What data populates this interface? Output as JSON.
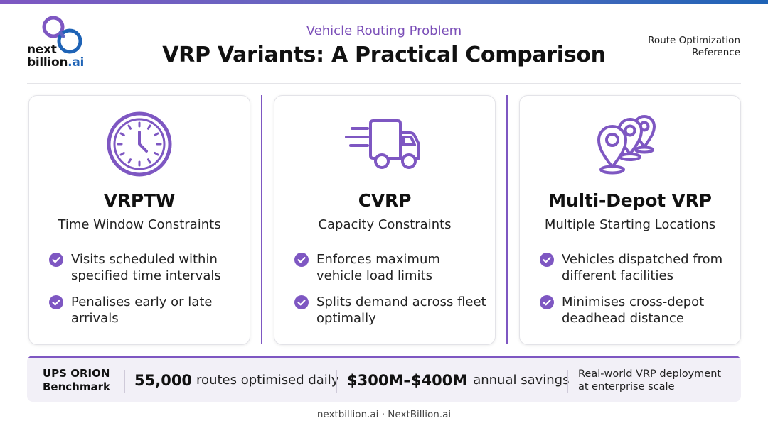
{
  "brand": {
    "line1": "next",
    "line2": "billion",
    "line2_suffix": ".ai"
  },
  "header": {
    "eyebrow": "Vehicle Routing Problem",
    "title": "VRP Variants: A Practical Comparison",
    "ref_line1": "Route Optimization",
    "ref_line2": "Reference"
  },
  "cards": [
    {
      "icon": "clock-icon",
      "title": "VRPTW",
      "subtitle": "Time Window Constraints",
      "bullets": [
        "Visits scheduled within specified time intervals",
        "Penalises early or late arrivals"
      ]
    },
    {
      "icon": "delivery-truck-icon",
      "title": "CVRP",
      "subtitle": "Capacity Constraints",
      "bullets": [
        "Enforces maximum vehicle load limits",
        "Splits demand across fleet optimally"
      ]
    },
    {
      "icon": "location-pins-icon",
      "title": "Multi-Depot VRP",
      "subtitle": "Multiple Starting Locations",
      "bullets": [
        "Vehicles dispatched from different facilities",
        "Minimises cross-depot deadhead distance"
      ]
    }
  ],
  "benchmark": {
    "label_line1": "UPS ORION",
    "label_line2": "Benchmark",
    "routes_value": "55,000",
    "routes_text": "routes optimised daily",
    "savings_value": "$300M–$400M",
    "savings_text": "annual savings",
    "note_line1": "Real-world VRP deployment",
    "note_line2": "at enterprise scale"
  },
  "footer": "nextbillion.ai · NextBillion.ai",
  "colors": {
    "accent": "#7e57c2",
    "accent_text": "#7b4fb8",
    "brand_blue": "#1e63b6"
  }
}
